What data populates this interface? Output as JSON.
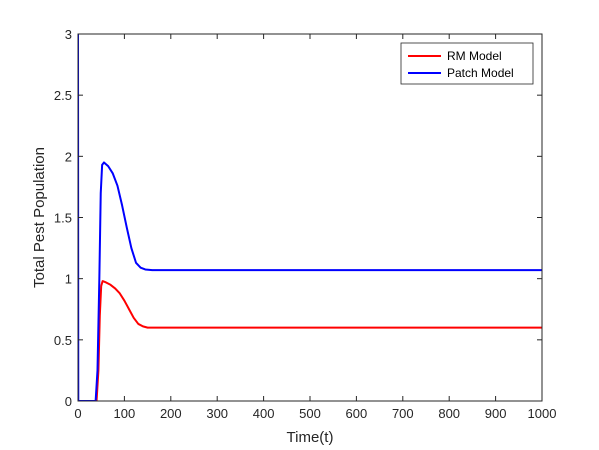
{
  "chart_data": {
    "type": "line",
    "title": "",
    "xlabel": "Time(t)",
    "ylabel": "Total Pest Population",
    "xlim": [
      0,
      1000
    ],
    "ylim": [
      0,
      3
    ],
    "xticks": [
      0,
      100,
      200,
      300,
      400,
      500,
      600,
      700,
      800,
      900,
      1000
    ],
    "yticks": [
      0,
      0.5,
      1,
      1.5,
      2,
      2.5,
      3
    ],
    "ytick_labels": [
      "0",
      "0.5",
      "1",
      "1.5",
      "2",
      "2.5",
      "3"
    ],
    "grid": false,
    "legend_position": "top-right",
    "series": [
      {
        "name": "RM Model",
        "color": "#ff0000",
        "points": [
          [
            0,
            0
          ],
          [
            40,
            0
          ],
          [
            44,
            0.25
          ],
          [
            47,
            0.7
          ],
          [
            50,
            0.94
          ],
          [
            53,
            0.98
          ],
          [
            60,
            0.97
          ],
          [
            70,
            0.95
          ],
          [
            80,
            0.92
          ],
          [
            90,
            0.88
          ],
          [
            100,
            0.82
          ],
          [
            110,
            0.75
          ],
          [
            120,
            0.68
          ],
          [
            130,
            0.63
          ],
          [
            140,
            0.61
          ],
          [
            150,
            0.6
          ],
          [
            170,
            0.6
          ],
          [
            1000,
            0.6
          ]
        ]
      },
      {
        "name": "Patch Model",
        "color": "#0000ff",
        "points": [
          [
            0,
            3
          ],
          [
            0.6,
            0
          ],
          [
            38,
            0
          ],
          [
            42,
            0.25
          ],
          [
            46,
            1.0
          ],
          [
            49,
            1.7
          ],
          [
            52,
            1.93
          ],
          [
            56,
            1.95
          ],
          [
            65,
            1.92
          ],
          [
            75,
            1.86
          ],
          [
            85,
            1.76
          ],
          [
            95,
            1.6
          ],
          [
            105,
            1.42
          ],
          [
            115,
            1.25
          ],
          [
            125,
            1.13
          ],
          [
            135,
            1.09
          ],
          [
            145,
            1.075
          ],
          [
            160,
            1.07
          ],
          [
            1000,
            1.07
          ]
        ]
      }
    ]
  }
}
